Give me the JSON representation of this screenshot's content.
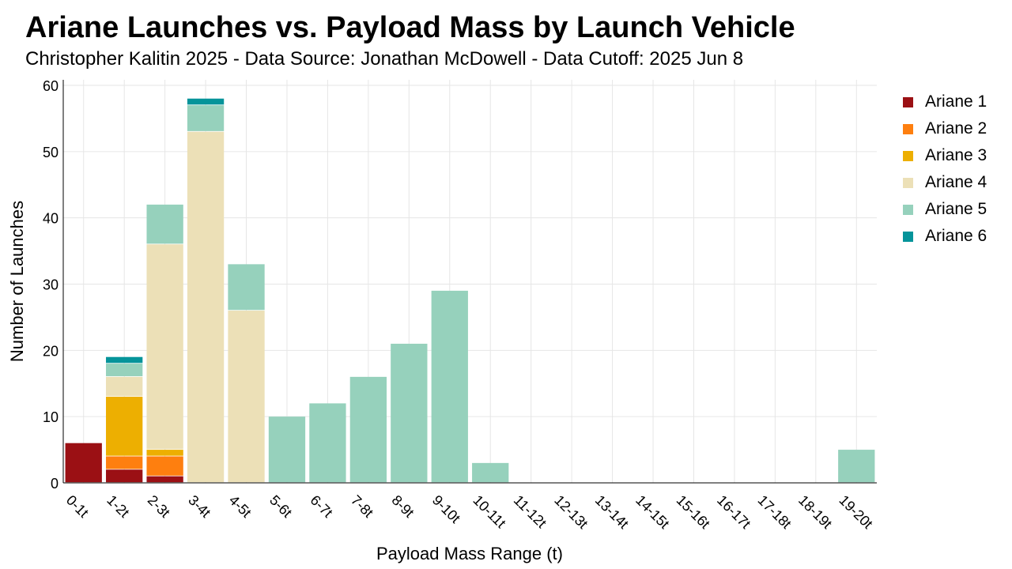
{
  "title": "Ariane Launches vs. Payload Mass by Launch Vehicle",
  "subtitle": "Christopher Kalitin 2025 - Data Source: Jonathan McDowell - Data Cutoff: 2025 Jun 8",
  "chart_data": {
    "type": "bar",
    "stacked": true,
    "xlabel": "Payload Mass Range (t)",
    "ylabel": "Number of Launches",
    "ylim": [
      0,
      60
    ],
    "yticks": [
      0,
      10,
      20,
      30,
      40,
      50,
      60
    ],
    "grid": true,
    "legend": "right",
    "categories": [
      "0-1t",
      "1-2t",
      "2-3t",
      "3-4t",
      "4-5t",
      "5-6t",
      "6-7t",
      "7-8t",
      "8-9t",
      "9-10t",
      "10-11t",
      "11-12t",
      "12-13t",
      "13-14t",
      "14-15t",
      "15-16t",
      "16-17t",
      "17-18t",
      "18-19t",
      "19-20t"
    ],
    "series": [
      {
        "name": "Ariane 1",
        "color": "#9b1014",
        "values": [
          6,
          2,
          1,
          0,
          0,
          0,
          0,
          0,
          0,
          0,
          0,
          0,
          0,
          0,
          0,
          0,
          0,
          0,
          0,
          0
        ]
      },
      {
        "name": "Ariane 2",
        "color": "#fe7f0f",
        "values": [
          0,
          2,
          3,
          0,
          0,
          0,
          0,
          0,
          0,
          0,
          0,
          0,
          0,
          0,
          0,
          0,
          0,
          0,
          0,
          0
        ]
      },
      {
        "name": "Ariane 3",
        "color": "#edaf01",
        "values": [
          0,
          9,
          1,
          0,
          0,
          0,
          0,
          0,
          0,
          0,
          0,
          0,
          0,
          0,
          0,
          0,
          0,
          0,
          0,
          0
        ]
      },
      {
        "name": "Ariane 4",
        "color": "#ece0b7",
        "values": [
          0,
          3,
          31,
          53,
          26,
          0,
          0,
          0,
          0,
          0,
          0,
          0,
          0,
          0,
          0,
          0,
          0,
          0,
          0,
          0
        ]
      },
      {
        "name": "Ariane 5",
        "color": "#96d1bc",
        "values": [
          0,
          2,
          6,
          4,
          7,
          10,
          12,
          16,
          21,
          29,
          3,
          0,
          0,
          0,
          0,
          0,
          0,
          0,
          0,
          5
        ]
      },
      {
        "name": "Ariane 6",
        "color": "#05949a",
        "values": [
          0,
          1,
          0,
          1,
          0,
          0,
          0,
          0,
          0,
          0,
          0,
          0,
          0,
          0,
          0,
          0,
          0,
          0,
          0,
          0
        ]
      }
    ]
  }
}
